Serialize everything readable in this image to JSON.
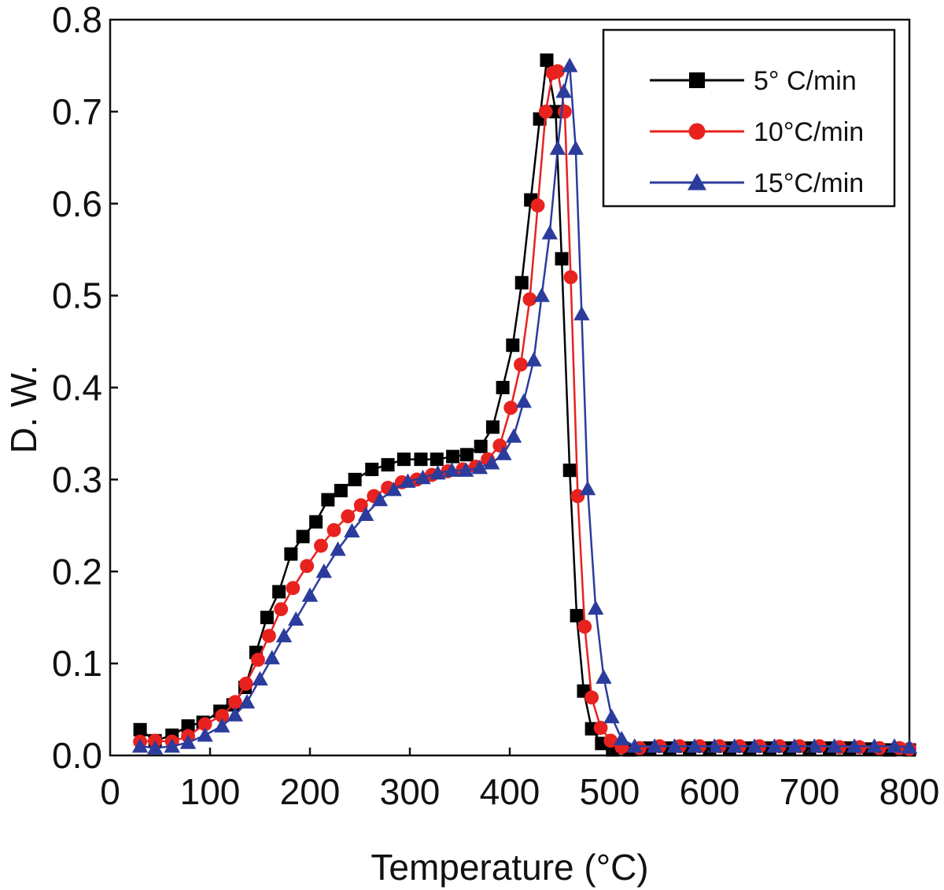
{
  "chart_data": {
    "type": "line",
    "xlabel": "Temperature (°C)",
    "ylabel": "D. W.",
    "xlim": [
      0,
      800
    ],
    "ylim": [
      0.0,
      0.8
    ],
    "xticks": [
      "0",
      "100",
      "200",
      "300",
      "400",
      "500",
      "600",
      "700",
      "800"
    ],
    "yticks": [
      "0.0",
      "0.1",
      "0.2",
      "0.3",
      "0.4",
      "0.5",
      "0.6",
      "0.7",
      "0.8"
    ],
    "grid": false,
    "legend": "top-right",
    "series": [
      {
        "name": "5° C/min",
        "color": "#000000",
        "marker": "square",
        "points": [
          [
            30,
            0.028
          ],
          [
            45,
            0.016
          ],
          [
            62,
            0.022
          ],
          [
            78,
            0.032
          ],
          [
            93,
            0.036
          ],
          [
            110,
            0.048
          ],
          [
            123,
            0.055
          ],
          [
            135,
            0.074
          ],
          [
            146,
            0.112
          ],
          [
            157,
            0.15
          ],
          [
            169,
            0.178
          ],
          [
            181,
            0.219
          ],
          [
            193,
            0.238
          ],
          [
            206,
            0.254
          ],
          [
            218,
            0.278
          ],
          [
            231,
            0.288
          ],
          [
            245,
            0.3
          ],
          [
            262,
            0.311
          ],
          [
            278,
            0.316
          ],
          [
            294,
            0.322
          ],
          [
            311,
            0.322
          ],
          [
            327,
            0.322
          ],
          [
            343,
            0.325
          ],
          [
            357,
            0.327
          ],
          [
            371,
            0.336
          ],
          [
            383,
            0.357
          ],
          [
            393,
            0.4
          ],
          [
            403,
            0.446
          ],
          [
            412,
            0.514
          ],
          [
            421,
            0.604
          ],
          [
            430,
            0.692
          ],
          [
            437,
            0.756
          ],
          [
            446,
            0.7
          ],
          [
            452,
            0.54
          ],
          [
            460,
            0.31
          ],
          [
            467,
            0.152
          ],
          [
            474,
            0.07
          ],
          [
            482,
            0.029
          ],
          [
            492,
            0.013
          ],
          [
            503,
            0.006
          ],
          [
            520,
            0.006
          ],
          [
            540,
            0.008
          ],
          [
            560,
            0.008
          ],
          [
            580,
            0.008
          ],
          [
            600,
            0.008
          ],
          [
            620,
            0.008
          ],
          [
            640,
            0.008
          ],
          [
            660,
            0.008
          ],
          [
            680,
            0.008
          ],
          [
            700,
            0.008
          ],
          [
            720,
            0.008
          ],
          [
            740,
            0.008
          ],
          [
            760,
            0.007
          ],
          [
            780,
            0.006
          ],
          [
            800,
            0.006
          ]
        ]
      },
      {
        "name": "10°C/min",
        "color": "#e8221f",
        "marker": "circle",
        "points": [
          [
            30,
            0.015
          ],
          [
            45,
            0.016
          ],
          [
            62,
            0.015
          ],
          [
            78,
            0.021
          ],
          [
            95,
            0.034
          ],
          [
            112,
            0.043
          ],
          [
            125,
            0.058
          ],
          [
            136,
            0.078
          ],
          [
            148,
            0.104
          ],
          [
            159,
            0.13
          ],
          [
            171,
            0.159
          ],
          [
            183,
            0.182
          ],
          [
            197,
            0.206
          ],
          [
            211,
            0.228
          ],
          [
            224,
            0.245
          ],
          [
            238,
            0.26
          ],
          [
            251,
            0.272
          ],
          [
            264,
            0.282
          ],
          [
            278,
            0.291
          ],
          [
            292,
            0.297
          ],
          [
            307,
            0.3
          ],
          [
            322,
            0.305
          ],
          [
            338,
            0.309
          ],
          [
            353,
            0.311
          ],
          [
            366,
            0.314
          ],
          [
            378,
            0.322
          ],
          [
            390,
            0.337
          ],
          [
            401,
            0.378
          ],
          [
            411,
            0.425
          ],
          [
            420,
            0.496
          ],
          [
            428,
            0.598
          ],
          [
            436,
            0.7
          ],
          [
            443,
            0.742
          ],
          [
            448,
            0.744
          ],
          [
            455,
            0.7
          ],
          [
            461,
            0.52
          ],
          [
            468,
            0.282
          ],
          [
            475,
            0.14
          ],
          [
            482,
            0.063
          ],
          [
            491,
            0.03
          ],
          [
            501,
            0.016
          ],
          [
            512,
            0.009
          ],
          [
            530,
            0.008
          ],
          [
            550,
            0.01
          ],
          [
            570,
            0.01
          ],
          [
            590,
            0.01
          ],
          [
            610,
            0.01
          ],
          [
            630,
            0.01
          ],
          [
            650,
            0.01
          ],
          [
            670,
            0.01
          ],
          [
            690,
            0.01
          ],
          [
            710,
            0.01
          ],
          [
            730,
            0.009
          ],
          [
            750,
            0.009
          ],
          [
            770,
            0.008
          ],
          [
            790,
            0.008
          ],
          [
            800,
            0.007
          ]
        ]
      },
      {
        "name": "15°C/min",
        "color": "#2c3c9c",
        "marker": "triangle",
        "points": [
          [
            30,
            0.01
          ],
          [
            45,
            0.008
          ],
          [
            62,
            0.01
          ],
          [
            78,
            0.014
          ],
          [
            95,
            0.022
          ],
          [
            112,
            0.032
          ],
          [
            125,
            0.044
          ],
          [
            137,
            0.058
          ],
          [
            150,
            0.083
          ],
          [
            162,
            0.106
          ],
          [
            174,
            0.13
          ],
          [
            186,
            0.148
          ],
          [
            200,
            0.174
          ],
          [
            214,
            0.2
          ],
          [
            228,
            0.224
          ],
          [
            242,
            0.244
          ],
          [
            256,
            0.262
          ],
          [
            270,
            0.278
          ],
          [
            284,
            0.289
          ],
          [
            298,
            0.298
          ],
          [
            313,
            0.302
          ],
          [
            328,
            0.307
          ],
          [
            342,
            0.31
          ],
          [
            356,
            0.31
          ],
          [
            370,
            0.313
          ],
          [
            382,
            0.318
          ],
          [
            394,
            0.328
          ],
          [
            404,
            0.347
          ],
          [
            414,
            0.385
          ],
          [
            424,
            0.43
          ],
          [
            432,
            0.5
          ],
          [
            440,
            0.568
          ],
          [
            448,
            0.66
          ],
          [
            454,
            0.722
          ],
          [
            460,
            0.75
          ],
          [
            466,
            0.66
          ],
          [
            472,
            0.48
          ],
          [
            478,
            0.29
          ],
          [
            486,
            0.16
          ],
          [
            494,
            0.085
          ],
          [
            502,
            0.042
          ],
          [
            512,
            0.018
          ],
          [
            525,
            0.01
          ],
          [
            545,
            0.01
          ],
          [
            565,
            0.01
          ],
          [
            585,
            0.01
          ],
          [
            605,
            0.01
          ],
          [
            625,
            0.01
          ],
          [
            645,
            0.01
          ],
          [
            665,
            0.01
          ],
          [
            685,
            0.01
          ],
          [
            705,
            0.01
          ],
          [
            725,
            0.01
          ],
          [
            745,
            0.01
          ],
          [
            765,
            0.01
          ],
          [
            785,
            0.01
          ],
          [
            800,
            0.009
          ]
        ]
      }
    ]
  }
}
